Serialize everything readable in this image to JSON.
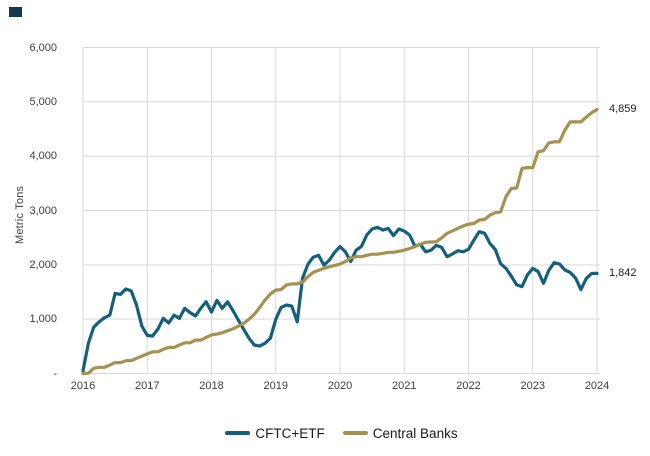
{
  "chart": {
    "y_axis_title": "Metric Tons",
    "y_ticks": [
      {
        "label": "6,000",
        "value": 6000
      },
      {
        "label": "5,000",
        "value": 5000
      },
      {
        "label": "4,000",
        "value": 4000
      },
      {
        "label": "3,000",
        "value": 3000
      },
      {
        "label": "2,000",
        "value": 2000
      },
      {
        "label": "1,000",
        "value": 1000
      },
      {
        "label": "-",
        "value": 0
      }
    ],
    "x_ticks": [
      {
        "label": "2016",
        "year": 2016
      },
      {
        "label": "2017",
        "year": 2017
      },
      {
        "label": "2018",
        "year": 2018
      },
      {
        "label": "2019",
        "year": 2019
      },
      {
        "label": "2020",
        "year": 2020
      },
      {
        "label": "2021",
        "year": 2021
      },
      {
        "label": "2022",
        "year": 2022
      },
      {
        "label": "2023",
        "year": 2023
      },
      {
        "label": "2024",
        "year": 2024
      }
    ],
    "end_labels": {
      "central_banks": "4,859",
      "cftc_etf": "1,842"
    },
    "legend": [
      {
        "label": "CFTC+ETF",
        "color": "#135f7c"
      },
      {
        "label": "Central Banks",
        "color": "#a6914e"
      }
    ],
    "grid_color": "#d9d9d9"
  },
  "chart_data": {
    "type": "line",
    "title": "",
    "ylabel": "Metric Tons",
    "ylim": [
      0,
      6000
    ],
    "xlim_years": [
      2016,
      2024
    ],
    "x_unit": "monthly points from Jan 2016 to Jan 2024",
    "grid": true,
    "legend_position": "bottom",
    "series": [
      {
        "name": "CFTC+ETF",
        "color": "#135f7c",
        "end_value": 1842,
        "values": [
          50,
          560,
          850,
          950,
          1025,
          1075,
          1475,
          1455,
          1555,
          1520,
          1260,
          870,
          700,
          690,
          820,
          1015,
          930,
          1075,
          1015,
          1200,
          1120,
          1060,
          1200,
          1320,
          1130,
          1345,
          1200,
          1320,
          1160,
          985,
          815,
          650,
          525,
          505,
          555,
          650,
          1000,
          1215,
          1260,
          1240,
          950,
          1750,
          2010,
          2140,
          2175,
          1995,
          2085,
          2230,
          2335,
          2240,
          2060,
          2270,
          2340,
          2550,
          2660,
          2690,
          2640,
          2670,
          2540,
          2660,
          2620,
          2550,
          2340,
          2380,
          2240,
          2270,
          2360,
          2320,
          2150,
          2200,
          2260,
          2240,
          2285,
          2455,
          2610,
          2580,
          2395,
          2280,
          2020,
          1935,
          1790,
          1630,
          1600,
          1815,
          1935,
          1875,
          1660,
          1900,
          2040,
          2015,
          1905,
          1860,
          1755,
          1545,
          1750,
          1840,
          1842
        ]
      },
      {
        "name": "Central Banks",
        "color": "#a6914e",
        "end_value": 4859,
        "values": [
          0,
          5,
          95,
          115,
          115,
          155,
          200,
          200,
          235,
          235,
          280,
          320,
          360,
          400,
          400,
          445,
          480,
          480,
          525,
          565,
          565,
          615,
          615,
          665,
          710,
          725,
          750,
          785,
          820,
          870,
          920,
          1000,
          1090,
          1215,
          1350,
          1465,
          1535,
          1545,
          1630,
          1650,
          1650,
          1680,
          1780,
          1860,
          1900,
          1935,
          1965,
          1990,
          2015,
          2060,
          2130,
          2150,
          2150,
          2175,
          2195,
          2195,
          2210,
          2230,
          2230,
          2250,
          2270,
          2300,
          2335,
          2380,
          2415,
          2420,
          2425,
          2500,
          2580,
          2625,
          2670,
          2715,
          2750,
          2760,
          2825,
          2835,
          2915,
          2960,
          2975,
          3255,
          3405,
          3415,
          3775,
          3790,
          3790,
          4080,
          4100,
          4245,
          4265,
          4265,
          4480,
          4630,
          4630,
          4630,
          4720,
          4800,
          4859
        ]
      }
    ]
  }
}
